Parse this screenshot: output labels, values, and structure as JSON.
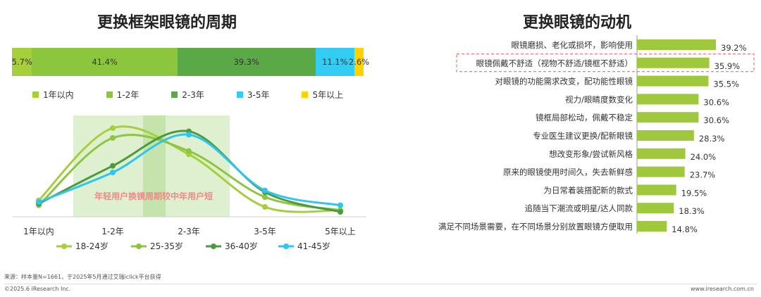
{
  "left": {
    "title": "更换框架眼镜的周期",
    "stacked_bar": {
      "segments": [
        {
          "label": "5.7%",
          "name": "1年以内",
          "value": 5.7,
          "color": "#a6cf3c"
        },
        {
          "label": "41.4%",
          "name": "1-2年",
          "value": 41.4,
          "color": "#8cc63f"
        },
        {
          "label": "39.3%",
          "name": "2-3年",
          "value": 39.3,
          "color": "#5aa846"
        },
        {
          "label": "11.1%",
          "name": "3-5年",
          "value": 11.1,
          "color": "#33ccf2"
        },
        {
          "label": "2.6%",
          "name": "5年以上",
          "value": 2.6,
          "color": "#ffd200"
        }
      ]
    },
    "annotation": "年轻用户换镜周期较中年用户短"
  },
  "right": {
    "title": "更换眼镜的动机"
  },
  "chart_data": [
    {
      "type": "bar",
      "orientation": "stacked-horizontal",
      "title": "更换框架眼镜的周期",
      "categories": [
        "1年以内",
        "1-2年",
        "2-3年",
        "3-5年",
        "5年以上"
      ],
      "values": [
        5.7,
        41.4,
        39.3,
        11.1,
        2.6
      ]
    },
    {
      "type": "line",
      "x": [
        "1年以内",
        "1-2年",
        "2-3年",
        "3-5年",
        "5年以上"
      ],
      "series": [
        {
          "name": "18-24岁",
          "values": [
            10,
            54,
            38,
            6,
            4
          ],
          "color": "#a6cf3c"
        },
        {
          "name": "25-35岁",
          "values": [
            7,
            48,
            40,
            12,
            4
          ],
          "color": "#8cc63f"
        },
        {
          "name": "36-40岁",
          "values": [
            8,
            31,
            52,
            15,
            3
          ],
          "color": "#4c9a3e"
        },
        {
          "name": "41-45岁",
          "values": [
            9,
            27,
            50,
            16,
            7
          ],
          "color": "#2cc6f0"
        }
      ],
      "ylim": [
        0,
        60
      ]
    },
    {
      "type": "bar",
      "orientation": "horizontal",
      "title": "更换眼镜的动机",
      "series_color": "#a0c83c",
      "items": [
        {
          "label": "眼镜磨损、老化或损坏，影响使用",
          "value": 39.2,
          "label_text": "39.2%"
        },
        {
          "label": "眼镜佩戴不舒适（视物不舒适/镜框不舒适）",
          "value": 35.9,
          "label_text": "35.9%",
          "highlight": true
        },
        {
          "label": "对眼镜的功能需求改变，配功能性眼镜",
          "value": 35.5,
          "label_text": "35.5%"
        },
        {
          "label": "视力/眼睛度数变化",
          "value": 30.6,
          "label_text": "30.6%"
        },
        {
          "label": "镜框局部松动，佩戴不稳定",
          "value": 30.6,
          "label_text": "30.6%"
        },
        {
          "label": "专业医生建议更换/配新眼镜",
          "value": 28.3,
          "label_text": "28.3%"
        },
        {
          "label": "想改变形象/尝试新风格",
          "value": 24.0,
          "label_text": "24.0%"
        },
        {
          "label": "原来的眼镜使用时间久，失去新鲜感",
          "value": 23.7,
          "label_text": "23.7%"
        },
        {
          "label": "为日常着装搭配新的款式",
          "value": 19.5,
          "label_text": "19.5%"
        },
        {
          "label": "追随当下潮流或明星/达人同款",
          "value": 18.3,
          "label_text": "18.3%"
        },
        {
          "label": "满足不同场景需要，在不同场景分别放置眼镜方便取用",
          "value": 14.8,
          "label_text": "14.8%"
        }
      ]
    }
  ],
  "footer": {
    "source": "来源：样本量N=1661，于2025年5月通过艾瑞iclick平台获得",
    "copyright": "©2025.6 iResearch Inc.",
    "url": "www.iresearch.com.cn"
  }
}
